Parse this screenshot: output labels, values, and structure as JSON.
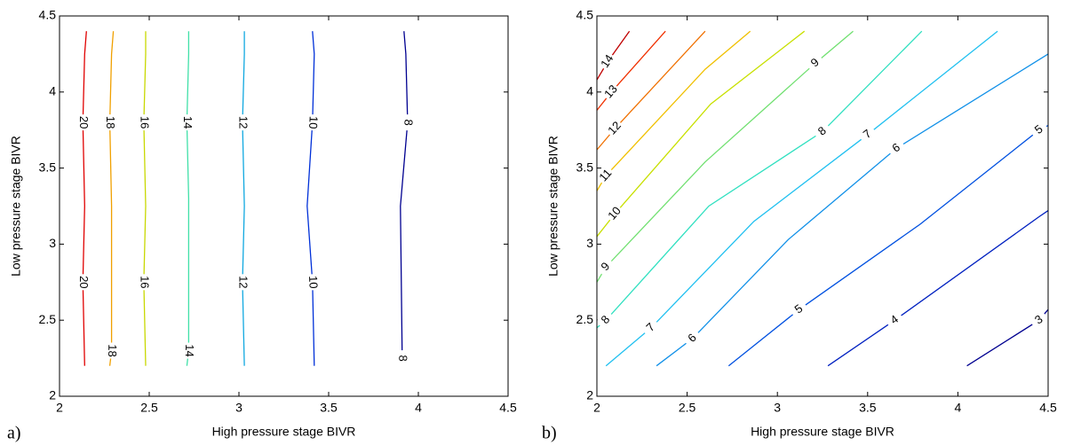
{
  "chart_data": [
    {
      "type": "contour",
      "panel_label": "a)",
      "xlabel": "High pressure stage BIVR",
      "ylabel": "Low pressure stage BIVR",
      "xlim": [
        2,
        4.5
      ],
      "ylim": [
        2,
        4.5
      ],
      "xticks": [
        2,
        2.5,
        3,
        3.5,
        4,
        4.5
      ],
      "yticks": [
        2,
        2.5,
        3,
        3.5,
        4,
        4.5
      ],
      "series": [
        {
          "level": 20,
          "color": "#e00000",
          "x": [
            2.14,
            2.13,
            2.14,
            2.13,
            2.14,
            2.15
          ],
          "y": [
            2.2,
            2.75,
            3.25,
            3.8,
            4.25,
            4.4
          ]
        },
        {
          "level": 18,
          "color": "#f0a000",
          "x": [
            2.28,
            2.29,
            2.29,
            2.28,
            2.29,
            2.3
          ],
          "y": [
            2.2,
            2.3,
            3.25,
            3.8,
            4.25,
            4.4
          ]
        },
        {
          "level": 16,
          "color": "#c8d800",
          "x": [
            2.48,
            2.47,
            2.48,
            2.47,
            2.48,
            2.48
          ],
          "y": [
            2.2,
            2.75,
            3.25,
            3.8,
            4.25,
            4.4
          ]
        },
        {
          "level": 14,
          "color": "#40e0a8",
          "x": [
            2.71,
            2.72,
            2.72,
            2.71,
            2.72,
            2.72
          ],
          "y": [
            2.2,
            2.3,
            3.3,
            3.8,
            4.25,
            4.4
          ]
        },
        {
          "level": 12,
          "color": "#10a8e0",
          "x": [
            3.03,
            3.02,
            3.03,
            3.02,
            3.03,
            3.03
          ],
          "y": [
            2.2,
            2.75,
            3.25,
            3.8,
            4.25,
            4.4
          ]
        },
        {
          "level": 10,
          "color": "#0030d8",
          "x": [
            3.42,
            3.41,
            3.38,
            3.41,
            3.42,
            3.41
          ],
          "y": [
            2.2,
            2.75,
            3.25,
            3.8,
            4.25,
            4.4
          ]
        },
        {
          "level": 8,
          "color": "#000090",
          "x": [
            3.92,
            3.91,
            3.9,
            3.94,
            3.93,
            3.92
          ],
          "y": [
            2.2,
            2.25,
            3.25,
            3.8,
            4.25,
            4.4
          ]
        }
      ]
    },
    {
      "type": "contour",
      "panel_label": "b)",
      "xlabel": "High pressure stage BIVR",
      "ylabel": "Low pressure stage BIVR",
      "xlim": [
        2,
        4.5
      ],
      "ylim": [
        2,
        4.5
      ],
      "xticks": [
        2,
        2.5,
        3,
        3.5,
        4,
        4.5
      ],
      "yticks": [
        2,
        2.5,
        3,
        3.5,
        4,
        4.5
      ],
      "series": [
        {
          "level": 14,
          "color": "#c00000",
          "x": [
            2,
            2.06,
            2.18
          ],
          "y": [
            4.08,
            4.2,
            4.4
          ]
        },
        {
          "level": 13,
          "color": "#f03000",
          "x": [
            2,
            2.08,
            2.38
          ],
          "y": [
            3.88,
            4.0,
            4.4
          ]
        },
        {
          "level": 12,
          "color": "#f07000",
          "x": [
            2,
            2.1,
            2.6
          ],
          "y": [
            3.62,
            3.76,
            4.4
          ]
        },
        {
          "level": 11,
          "color": "#f0c000",
          "x": [
            2,
            2.05,
            2.6,
            2.85
          ],
          "y": [
            3.35,
            3.45,
            4.15,
            4.4
          ]
        },
        {
          "level": 10,
          "color": "#c8e000",
          "x": [
            2,
            2.1,
            2.63,
            3.15
          ],
          "y": [
            3.05,
            3.2,
            3.92,
            4.4
          ]
        },
        {
          "level": 9,
          "color": "#70e070",
          "x": [
            2,
            2.05,
            2.6,
            3.21,
            3.42
          ],
          "y": [
            2.75,
            2.85,
            3.54,
            4.19,
            4.4
          ]
        },
        {
          "level": 8,
          "color": "#30e0c0",
          "x": [
            2,
            2.05,
            2.62,
            3.25,
            3.8
          ],
          "y": [
            2.45,
            2.5,
            3.25,
            3.74,
            4.4
          ]
        },
        {
          "level": 7,
          "color": "#20c0f0",
          "x": [
            2.05,
            2.3,
            2.87,
            3.5,
            4.22
          ],
          "y": [
            2.2,
            2.45,
            3.15,
            3.72,
            4.4
          ]
        },
        {
          "level": 6,
          "color": "#1090e8",
          "x": [
            2.33,
            2.53,
            3.06,
            3.66,
            4.5
          ],
          "y": [
            2.2,
            2.38,
            3.03,
            3.63,
            4.25
          ]
        },
        {
          "level": 5,
          "color": "#0050e0",
          "x": [
            2.73,
            3.12,
            3.79,
            4.45,
            4.5
          ],
          "y": [
            2.2,
            2.57,
            3.13,
            3.75,
            3.78
          ]
        },
        {
          "level": 4,
          "color": "#0020c0",
          "x": [
            3.28,
            3.65,
            4.45,
            4.5
          ],
          "y": [
            2.2,
            2.5,
            3.18,
            3.22
          ]
        },
        {
          "level": 3,
          "color": "#000090",
          "x": [
            4.05,
            4.45,
            4.5
          ],
          "y": [
            2.2,
            2.5,
            2.57
          ]
        }
      ]
    }
  ]
}
